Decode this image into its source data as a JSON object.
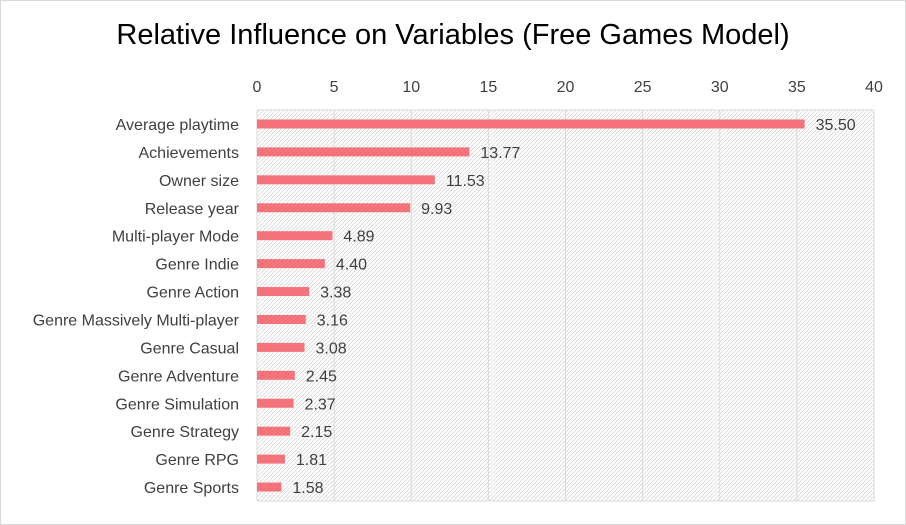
{
  "colors": {
    "bar": "#f4737b",
    "grid": "#d9d9d9",
    "hatch": "#c8c8c8",
    "text": "#404040"
  },
  "chart_data": {
    "type": "bar",
    "orientation": "horizontal",
    "title": "Relative Influence on Variables (Free Games Model)",
    "xlabel": "",
    "ylabel": "",
    "xlim": [
      0,
      40
    ],
    "ticks": [
      0,
      5,
      10,
      15,
      20,
      25,
      30,
      35,
      40
    ],
    "tick_position": "top",
    "grid": true,
    "legend": "none",
    "categories": [
      "Average playtime",
      "Achievements",
      "Owner size",
      "Release year",
      "Multi-player Mode",
      "Genre Indie",
      "Genre Action",
      "Genre Massively Multi-player",
      "Genre Casual",
      "Genre Adventure",
      "Genre Simulation",
      "Genre Strategy",
      "Genre RPG",
      "Genre Sports"
    ],
    "values": [
      35.5,
      13.77,
      11.53,
      9.93,
      4.89,
      4.4,
      3.38,
      3.16,
      3.08,
      2.45,
      2.37,
      2.15,
      1.81,
      1.58
    ],
    "value_labels": [
      "35.50",
      "13.77",
      "11.53",
      "9.93",
      "4.89",
      "4.40",
      "3.38",
      "3.16",
      "3.08",
      "2.45",
      "2.37",
      "2.15",
      "1.81",
      "1.58"
    ]
  }
}
